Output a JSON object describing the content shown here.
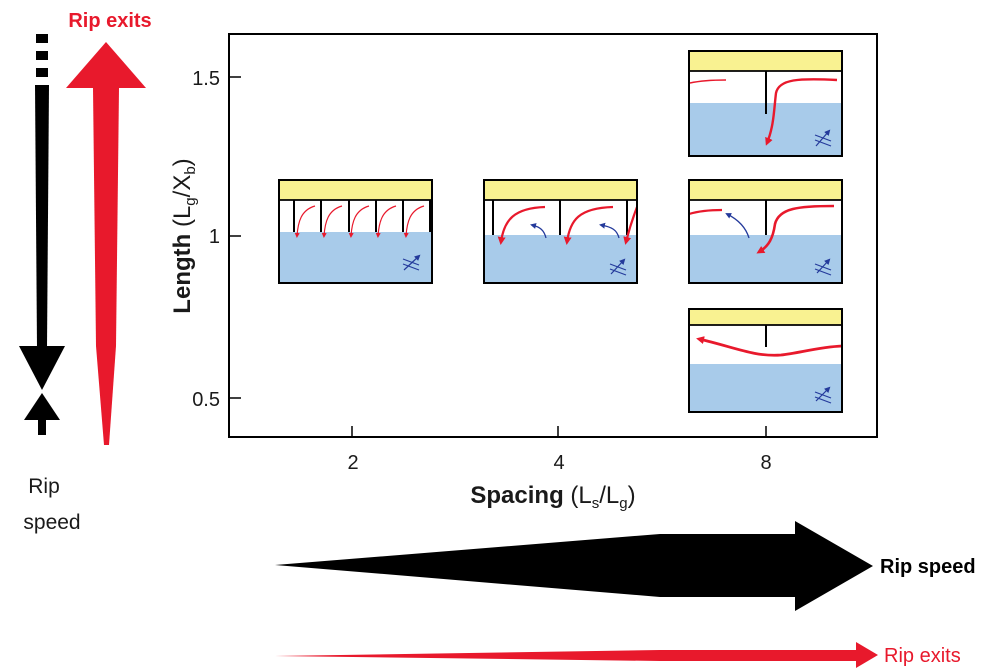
{
  "labels": {
    "rip_exits_top": "Rip exits",
    "rip_speed_side_line1": "Rip",
    "rip_speed_side_line2": "speed",
    "rip_speed_bottom": "Rip speed",
    "rip_exits_bottom": "Rip exits"
  },
  "axes": {
    "y_title_bold": "Length",
    "y_title_open": " (L",
    "y_title_sub1": "g",
    "y_title_mid": "/X",
    "y_title_sub2": "b",
    "y_title_close": ")",
    "x_title_bold": "Spacing",
    "x_title_open": " (L",
    "x_title_sub1": "s",
    "x_title_mid": "/L",
    "x_title_sub2": "g",
    "x_title_close": ")",
    "x_ticks": [
      "2",
      "4",
      "8"
    ],
    "y_ticks": [
      "0.5",
      "1",
      "1.5"
    ]
  },
  "colors": {
    "beach": "#f9f291",
    "water": "#a8cbea",
    "red": "#e8192c",
    "black": "#000000",
    "blue": "#243a9b"
  }
}
